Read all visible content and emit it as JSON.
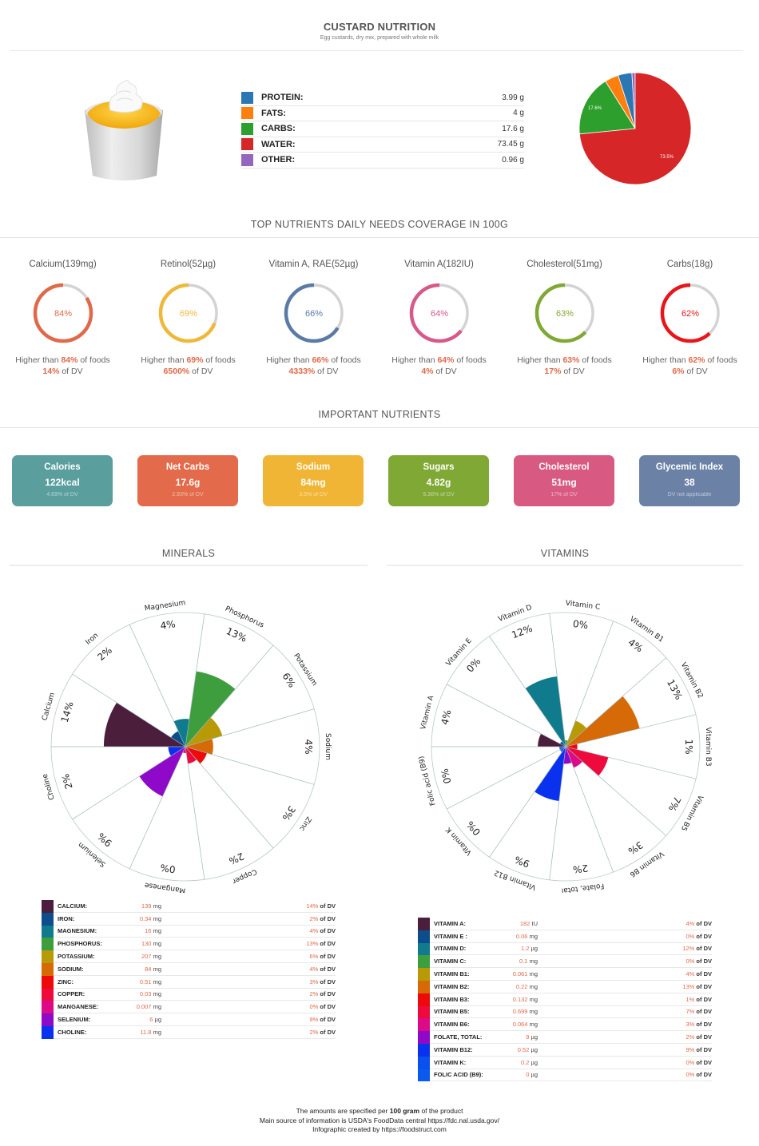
{
  "header": {
    "title": "CUSTARD NUTRITION",
    "subtitle": "Egg custards, dry mix, prepared with whole milk"
  },
  "product_image": {
    "icon": "custard-cup-icon",
    "alt": "custard in white cup with whipped cream"
  },
  "macros": [
    {
      "label": "PROTEIN:",
      "value": "3.99 g",
      "color": "#2a77b4"
    },
    {
      "label": "FATS:",
      "value": "4 g",
      "color": "#fe7f0e"
    },
    {
      "label": "CARBS:",
      "value": "17.6 g",
      "color": "#2c9f2c"
    },
    {
      "label": "WATER:",
      "value": "73.45 g",
      "color": "#d62627"
    },
    {
      "label": "OTHER:",
      "value": "0.96 g",
      "color": "#9467bd"
    }
  ],
  "sections": {
    "top_nutrients": "TOP NUTRIENTS DAILY NEEDS COVERAGE IN 100G",
    "important": "IMPORTANT NUTRIENTS",
    "minerals": "MINERALS",
    "vitamins": "VITAMINS"
  },
  "rings": [
    {
      "title": "Calcium(139mg)",
      "pct": "84%",
      "pct_num": 84,
      "dv": "14%",
      "color": "#e0694a",
      "text_prefix": "Higher than ",
      "text_suffix": " of foods",
      "dv_suffix": " of DV"
    },
    {
      "title": "Retinol(52µg)",
      "pct": "69%",
      "pct_num": 69,
      "dv": "6500%",
      "color": "#f0b83a",
      "text_prefix": "Higher than ",
      "text_suffix": " of foods",
      "dv_suffix": " of DV"
    },
    {
      "title": "Vitamin A, RAE(52µg)",
      "pct": "66%",
      "pct_num": 66,
      "dv": "4333%",
      "color": "#5b7aa6",
      "text_prefix": "Higher than ",
      "text_suffix": " of foods",
      "dv_suffix": " of DV"
    },
    {
      "title": "Vitamin A(182IU)",
      "pct": "64%",
      "pct_num": 64,
      "dv": "4%",
      "color": "#d6598a",
      "text_prefix": "Higher than ",
      "text_suffix": " of foods",
      "dv_suffix": " of DV"
    },
    {
      "title": "Cholesterol(51mg)",
      "pct": "63%",
      "pct_num": 63,
      "dv": "17%",
      "color": "#80a834",
      "text_prefix": "Higher than ",
      "text_suffix": " of foods",
      "dv_suffix": " of DV"
    },
    {
      "title": "Carbs(18g)",
      "pct": "62%",
      "pct_num": 62,
      "dv": "6%",
      "color": "#e8161a",
      "text_prefix": "Higher than ",
      "text_suffix": " of foods",
      "dv_suffix": " of DV"
    }
  ],
  "cards": [
    {
      "title": "Calories",
      "value": "122kcal",
      "dv": "4.69% of DV",
      "color": "#5a9e9e"
    },
    {
      "title": "Net Carbs",
      "value": "17.6g",
      "dv": "2.93% of DV",
      "color": "#e36a4a"
    },
    {
      "title": "Sodium",
      "value": "84mg",
      "dv": "3.5% of DV",
      "color": "#f1b535"
    },
    {
      "title": "Sugars",
      "value": "4.82g",
      "dv": "5.36% of DV",
      "color": "#80a834"
    },
    {
      "title": "Cholesterol",
      "value": "51mg",
      "dv": "17% of DV",
      "color": "#d85a83"
    },
    {
      "title": "Glycemic Index",
      "value": "38",
      "dv": "DV not applicable",
      "color": "#6b82a6"
    }
  ],
  "minerals": [
    {
      "label": "CALCIUM:",
      "amount": "139",
      "unit": "mg",
      "dv": "14%",
      "color": "#4b1e3c"
    },
    {
      "label": "IRON:",
      "amount": "0.34",
      "unit": "mg",
      "dv": "2%",
      "color": "#0e4d8c"
    },
    {
      "label": "MAGNESIUM:",
      "amount": "16",
      "unit": "mg",
      "dv": "4%",
      "color": "#0f7b8c"
    },
    {
      "label": "PHOSPHORUS:",
      "amount": "130",
      "unit": "mg",
      "dv": "13%",
      "color": "#3e9e3e"
    },
    {
      "label": "POTASSIUM:",
      "amount": "207",
      "unit": "mg",
      "dv": "6%",
      "color": "#b89a06"
    },
    {
      "label": "SODIUM:",
      "amount": "84",
      "unit": "mg",
      "dv": "4%",
      "color": "#d66a06"
    },
    {
      "label": "ZINC:",
      "amount": "0.51",
      "unit": "mg",
      "dv": "3%",
      "color": "#ee0a0a"
    },
    {
      "label": "COPPER:",
      "amount": "0.03",
      "unit": "mg",
      "dv": "2%",
      "color": "#ee0a3c"
    },
    {
      "label": "MANGANESE:",
      "amount": "0.007",
      "unit": "mg",
      "dv": "0%",
      "color": "#dd0a88"
    },
    {
      "label": "SELENIUM:",
      "amount": "6",
      "unit": "µg",
      "dv": "9%",
      "color": "#8f0ac8"
    },
    {
      "label": "CHOLINE:",
      "amount": "11.8",
      "unit": "mg",
      "dv": "2%",
      "color": "#0a32ee"
    }
  ],
  "vitamins": [
    {
      "label": "VITAMIN A:",
      "amount": "182",
      "unit": "IU",
      "dv": "4%",
      "color": "#4b1e3c"
    },
    {
      "label": "VITAMIN E :",
      "amount": "0.06",
      "unit": "mg",
      "dv": "0%",
      "color": "#0e4d8c"
    },
    {
      "label": "VITAMIN D:",
      "amount": "1.2",
      "unit": "µg",
      "dv": "12%",
      "color": "#0f7b8c"
    },
    {
      "label": "VITAMIN C:",
      "amount": "0.1",
      "unit": "mg",
      "dv": "0%",
      "color": "#3e9e3e"
    },
    {
      "label": "VITAMIN B1:",
      "amount": "0.061",
      "unit": "mg",
      "dv": "4%",
      "color": "#b89a06"
    },
    {
      "label": "VITAMIN B2:",
      "amount": "0.22",
      "unit": "mg",
      "dv": "13%",
      "color": "#d66a06"
    },
    {
      "label": "VITAMIN B3:",
      "amount": "0.132",
      "unit": "mg",
      "dv": "1%",
      "color": "#ee0a0a"
    },
    {
      "label": "VITAMIN B5:",
      "amount": "0.699",
      "unit": "mg",
      "dv": "7%",
      "color": "#ee0a3c"
    },
    {
      "label": "VITAMIN B6:",
      "amount": "0.064",
      "unit": "mg",
      "dv": "3%",
      "color": "#dd0a88"
    },
    {
      "label": "FOLATE, TOTAL:",
      "amount": "9",
      "unit": "µg",
      "dv": "2%",
      "color": "#8f0ac8"
    },
    {
      "label": "VITAMIN B12:",
      "amount": "0.52",
      "unit": "µg",
      "dv": "9%",
      "color": "#0a32ee"
    },
    {
      "label": "VITAMIN K:",
      "amount": "0.2",
      "unit": "µg",
      "dv": "0%",
      "color": "#0a50ee"
    },
    {
      "label": "FOLIC ACID (B9):",
      "amount": "0",
      "unit": "µg",
      "dv": "0%",
      "color": "#0a5aee"
    }
  ],
  "dv_suffix": "of DV",
  "footer": {
    "line1_pre": "The amounts are specified per ",
    "line1_bold": "100 gram",
    "line1_post": " of the product",
    "line2": "Main source of information is USDA's FoodData central https://fdc.nal.usda.gov/",
    "line3": "Infographic created by https://foodstruct.com"
  },
  "chart_data": [
    {
      "type": "pie",
      "title": "Macronutrient composition",
      "categories": [
        "Protein",
        "Fats",
        "Carbs",
        "Water",
        "Other"
      ],
      "values": [
        3.99,
        4,
        17.6,
        73.45,
        0.96
      ],
      "labels_shown": [
        "17.6%",
        "73.5%"
      ],
      "colors": [
        "#2a77b4",
        "#fe7f0e",
        "#2c9f2c",
        "#d62627",
        "#9467bd"
      ]
    },
    {
      "type": "bar",
      "subtype": "polar-area",
      "title": "MINERALS",
      "categories": [
        "Calcium",
        "Iron",
        "Magnesium",
        "Phosphorus",
        "Potassium",
        "Sodium",
        "Zinc",
        "Copper",
        "Manganese",
        "Selenium",
        "Choline"
      ],
      "values": [
        14,
        2,
        4,
        13,
        6,
        4,
        3,
        2,
        0,
        9,
        2
      ],
      "unit": "% of DV"
    },
    {
      "type": "bar",
      "subtype": "polar-area",
      "title": "VITAMINS",
      "categories": [
        "Vitamin A",
        "Vitamin E",
        "Vitamin D",
        "Vitamin C",
        "Vitamin B1",
        "Vitamin B2",
        "Vitamin B3",
        "Vitamin B5",
        "Vitamin B6",
        "Folate, total",
        "Vitamin B12",
        "Vitamin K",
        "Folic acid (B9)"
      ],
      "values": [
        4,
        0,
        12,
        0,
        4,
        13,
        1,
        7,
        3,
        2,
        9,
        0,
        0
      ],
      "unit": "% of DV"
    },
    {
      "type": "table",
      "title": "TOP NUTRIENTS DAILY NEEDS COVERAGE IN 100G",
      "categories": [
        "Calcium(139mg)",
        "Retinol(52µg)",
        "Vitamin A, RAE(52µg)",
        "Vitamin A(182IU)",
        "Cholesterol(51mg)",
        "Carbs(18g)"
      ],
      "series": [
        {
          "name": "Higher than % of foods",
          "values": [
            84,
            69,
            66,
            64,
            63,
            62
          ]
        },
        {
          "name": "% of DV",
          "values": [
            14,
            6500,
            4333,
            4,
            17,
            6
          ]
        }
      ]
    }
  ]
}
